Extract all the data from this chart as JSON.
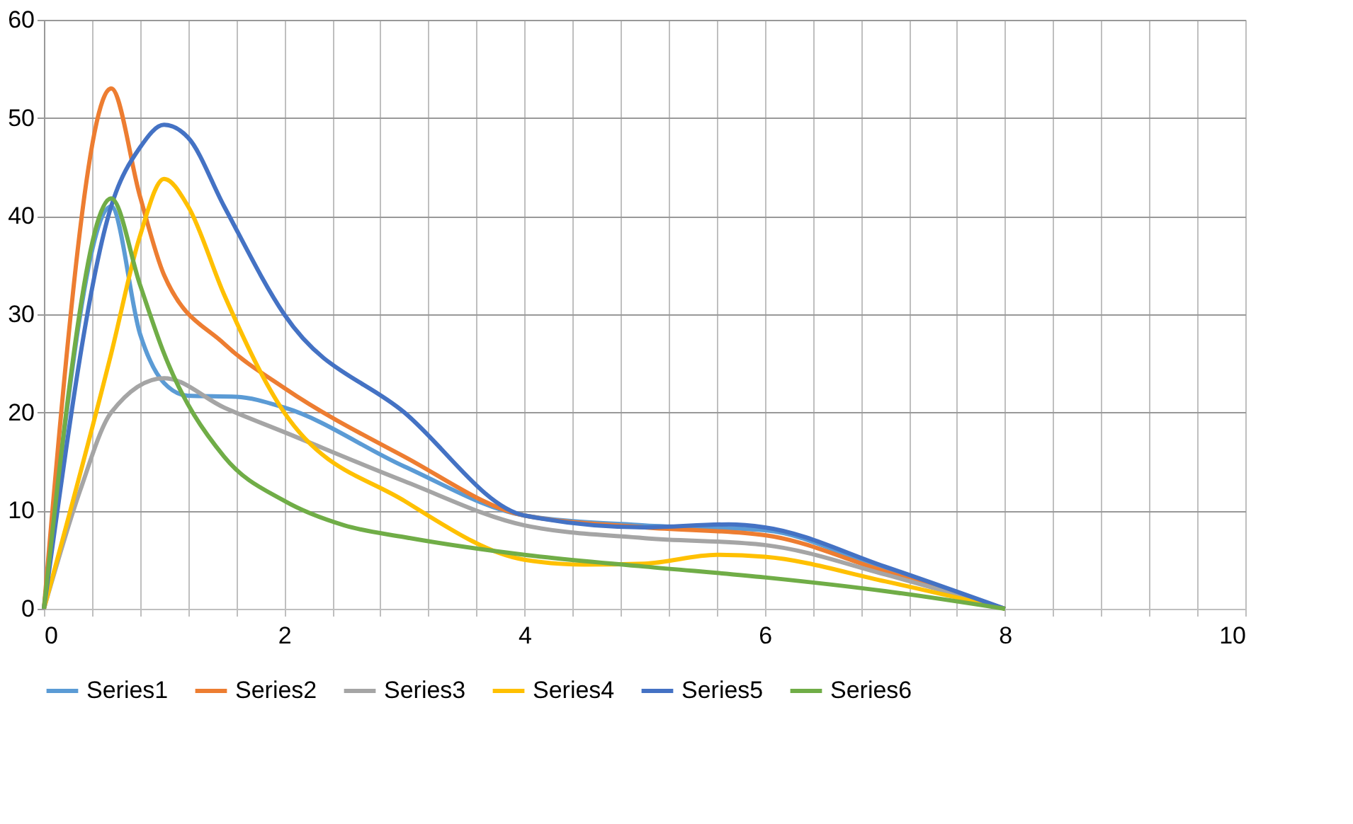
{
  "chart_data": {
    "type": "line",
    "xlim": [
      0,
      10
    ],
    "ylim": [
      0,
      60
    ],
    "xticks": [
      0,
      {
        "value": 0.4,
        "label": null
      },
      {
        "value": 0.8,
        "label": null
      },
      {
        "value": 1.2,
        "label": null
      },
      {
        "value": 1.6,
        "label": null
      },
      2,
      {
        "value": 2.4,
        "label": null
      },
      {
        "value": 2.8,
        "label": null
      },
      {
        "value": 3.2,
        "label": null
      },
      {
        "value": 3.6,
        "label": null
      },
      4,
      {
        "value": 4.4,
        "label": null
      },
      {
        "value": 4.8,
        "label": null
      },
      {
        "value": 5.2,
        "label": null
      },
      {
        "value": 5.6,
        "label": null
      },
      6,
      {
        "value": 6.4,
        "label": null
      },
      {
        "value": 6.8,
        "label": null
      },
      {
        "value": 7.2,
        "label": null
      },
      {
        "value": 7.6,
        "label": null
      },
      8,
      {
        "value": 8.4,
        "label": null
      },
      {
        "value": 8.8,
        "label": null
      },
      {
        "value": 9.2,
        "label": null
      },
      {
        "value": 9.6,
        "label": null
      },
      10
    ],
    "yticks": [
      0,
      10,
      20,
      30,
      40,
      50,
      60
    ],
    "grid": true,
    "legend": "bottom",
    "marker": "none",
    "line_style": "solid",
    "series": [
      {
        "name": "Series1",
        "color": "#5b9bd5",
        "x": [
          0,
          0.56,
          0.8,
          1,
          1.2,
          1.6,
          2,
          3,
          4,
          5,
          6,
          7,
          8
        ],
        "values": [
          0,
          41,
          28,
          23,
          21.7,
          21.6,
          20.5,
          14.5,
          9.5,
          8.5,
          8,
          4,
          0
        ]
      },
      {
        "name": "Series2",
        "color": "#ed7d31",
        "x": [
          0,
          0.56,
          0.8,
          1,
          1.5,
          2,
          3,
          4,
          5,
          6,
          7,
          8
        ],
        "values": [
          0,
          53,
          42,
          34,
          27,
          22.5,
          15.5,
          9.5,
          8.3,
          7.5,
          3.8,
          0
        ]
      },
      {
        "name": "Series3",
        "color": "#a5a5a5",
        "x": [
          0,
          0.3,
          0.56,
          1,
          1.5,
          2,
          3,
          4,
          5,
          6,
          7,
          8
        ],
        "values": [
          0,
          12,
          20,
          23.5,
          20.5,
          18,
          13,
          8.5,
          7.2,
          6.5,
          3.5,
          0
        ]
      },
      {
        "name": "Series4",
        "color": "#ffc000",
        "x": [
          0,
          0.56,
          0.8,
          1,
          1.2,
          1.5,
          2,
          3,
          4,
          4.5,
          5,
          5.6,
          6,
          7,
          8
        ],
        "values": [
          0,
          26,
          38,
          43.8,
          41,
          32,
          20,
          11,
          5,
          4.5,
          4.6,
          5.5,
          5.3,
          2.8,
          0
        ]
      },
      {
        "name": "Series5",
        "color": "#4472c4",
        "x": [
          0,
          0.56,
          0.8,
          1,
          1.2,
          1.5,
          2,
          3,
          4,
          5,
          5.7,
          6,
          7,
          8
        ],
        "values": [
          0,
          41,
          47,
          49.3,
          48,
          41,
          30,
          20,
          9.5,
          8.3,
          8.6,
          8.3,
          4.3,
          0
        ]
      },
      {
        "name": "Series6",
        "color": "#70ad47",
        "x": [
          0,
          0.56,
          0.8,
          1,
          1.5,
          2,
          2.5,
          3,
          4,
          5,
          6,
          7,
          8
        ],
        "values": [
          0,
          41.8,
          33,
          26,
          15.5,
          11,
          8.5,
          7.3,
          5.5,
          4.3,
          3.2,
          1.8,
          0
        ]
      }
    ]
  }
}
